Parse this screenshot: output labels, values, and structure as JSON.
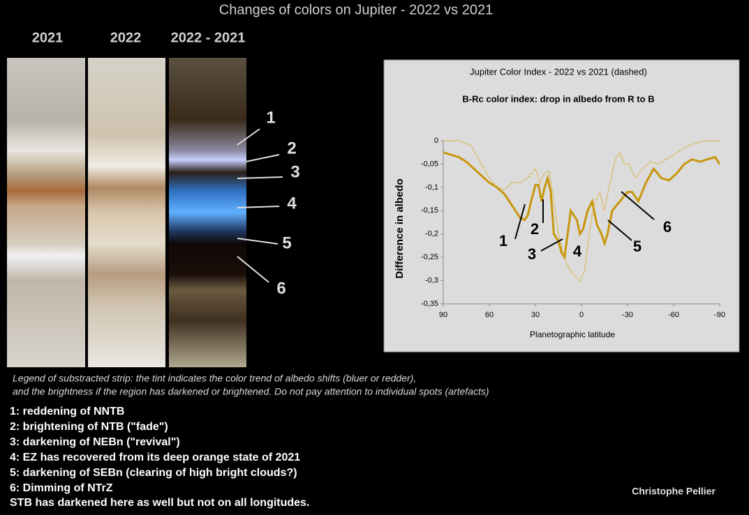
{
  "title": "Changes of colors on Jupiter - 2022 vs 2021",
  "strips": {
    "labels": [
      "2021",
      "2022",
      "2022 - 2021"
    ],
    "annotations": [
      "1",
      "2",
      "3",
      "4",
      "5",
      "6"
    ]
  },
  "chart_data": {
    "type": "line",
    "title": "Jupiter Color Index - 2022 vs 2021 (dashed)",
    "subtitle": "B-Rc color index: drop in albedo from R to B",
    "xlabel": "Planetographic latitude",
    "ylabel": "Difference in albedo",
    "xlim": [
      90,
      -90
    ],
    "ylim": [
      -0.35,
      0
    ],
    "xticks": [
      90,
      60,
      30,
      0,
      -30,
      -60,
      -90
    ],
    "yticks": [
      0,
      {
        "value": -0.05,
        "label": "-0,05"
      },
      {
        "value": -0.1,
        "label": "-0,1"
      },
      {
        "value": -0.15,
        "label": "-0,15"
      },
      {
        "value": -0.2,
        "label": "-0,2"
      },
      {
        "value": -0.25,
        "label": "-0,25"
      },
      {
        "value": -0.3,
        "label": "-0,3"
      },
      {
        "value": -0.35,
        "label": "-0,35"
      }
    ],
    "grid": false,
    "annotations": [
      "1",
      "2",
      "3",
      "4",
      "5",
      "6"
    ],
    "series": [
      {
        "color": "#c8960c",
        "dashed": false,
        "x": [
          90,
          85,
          80,
          75,
          70,
          65,
          60,
          55,
          50,
          45,
          40,
          37,
          35,
          32,
          30,
          28,
          26,
          24,
          22,
          20,
          18,
          15,
          13,
          11,
          9,
          7,
          5,
          3,
          1,
          -1,
          -4,
          -7,
          -10,
          -13,
          -15,
          -17,
          -20,
          -25,
          -30,
          -33,
          -37,
          -42,
          -47,
          -52,
          -57,
          -62,
          -67,
          -72,
          -77,
          -82,
          -87,
          -90
        ],
        "values": [
          -0.025,
          -0.03,
          -0.035,
          -0.045,
          -0.06,
          -0.075,
          -0.09,
          -0.1,
          -0.115,
          -0.14,
          -0.165,
          -0.17,
          -0.16,
          -0.12,
          -0.095,
          -0.095,
          -0.13,
          -0.1,
          -0.08,
          -0.11,
          -0.2,
          -0.215,
          -0.24,
          -0.25,
          -0.2,
          -0.15,
          -0.16,
          -0.17,
          -0.2,
          -0.19,
          -0.15,
          -0.13,
          -0.18,
          -0.2,
          -0.22,
          -0.2,
          -0.15,
          -0.13,
          -0.11,
          -0.11,
          -0.13,
          -0.09,
          -0.06,
          -0.08,
          -0.085,
          -0.07,
          -0.05,
          -0.04,
          -0.045,
          -0.04,
          -0.035,
          -0.05
        ]
      },
      {
        "color": "#d8a820",
        "dashed": true,
        "x": [
          90,
          80,
          72,
          65,
          60,
          55,
          50,
          45,
          40,
          35,
          30,
          27,
          24,
          21,
          18,
          15,
          12,
          10,
          7,
          4,
          1,
          -2,
          -5,
          -8,
          -12,
          -15,
          -18,
          -22,
          -25,
          -28,
          -31,
          -35,
          -40,
          -45,
          -50,
          -55,
          -60,
          -65,
          -70,
          -80,
          -90
        ],
        "values": [
          0,
          0,
          -0.01,
          -0.05,
          -0.08,
          -0.1,
          -0.105,
          -0.09,
          -0.09,
          -0.08,
          -0.06,
          -0.09,
          -0.07,
          -0.065,
          -0.13,
          -0.2,
          -0.24,
          -0.26,
          -0.28,
          -0.29,
          -0.3,
          -0.28,
          -0.2,
          -0.14,
          -0.11,
          -0.15,
          -0.1,
          -0.04,
          -0.025,
          -0.05,
          -0.05,
          -0.08,
          -0.06,
          -0.045,
          -0.05,
          -0.04,
          -0.03,
          -0.02,
          -0.01,
          0,
          0
        ]
      }
    ]
  },
  "legend": {
    "lines": [
      "Legend of substracted strip: the tint indicates the color trend of albedo shifts (bluer or redder),",
      "and the brightness if the region has darkened or brightened. Do not pay attention to individual spots (artefacts)"
    ]
  },
  "notes": [
    "1: reddening of NNTB",
    "2: brightening of NTB (\"fade\")",
    "3: darkening of NEBn (\"revival\")",
    "4: EZ has recovered from its deep orange state of 2021",
    "5: darkening of SEBn (clearing of high bright clouds?)",
    "6: Dimming of NTrZ",
    "STB has darkened here as well but not on all longitudes."
  ],
  "author": "Christophe Pellier"
}
